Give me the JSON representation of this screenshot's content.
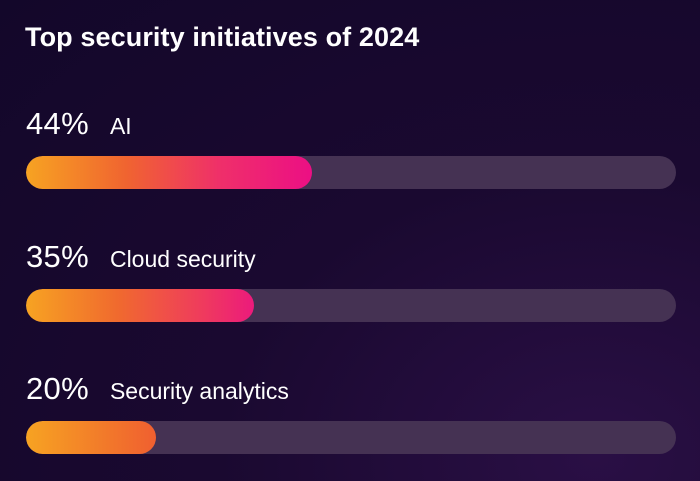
{
  "chart_data": {
    "type": "bar",
    "title": "Top security initiatives of 2024",
    "categories": [
      "AI",
      "Cloud security",
      "Security analytics"
    ],
    "values": [
      44,
      35,
      20
    ],
    "value_labels": [
      "44%",
      "35%",
      "20%"
    ],
    "xlim": [
      0,
      100
    ],
    "orientation": "horizontal",
    "grid": false,
    "legend": "none"
  },
  "colors": {
    "background": "#16082d",
    "track": "#453253",
    "gradient_start": "#f7a322",
    "gradient_mid": "#f06430",
    "gradient_end": "#ec0f84"
  }
}
